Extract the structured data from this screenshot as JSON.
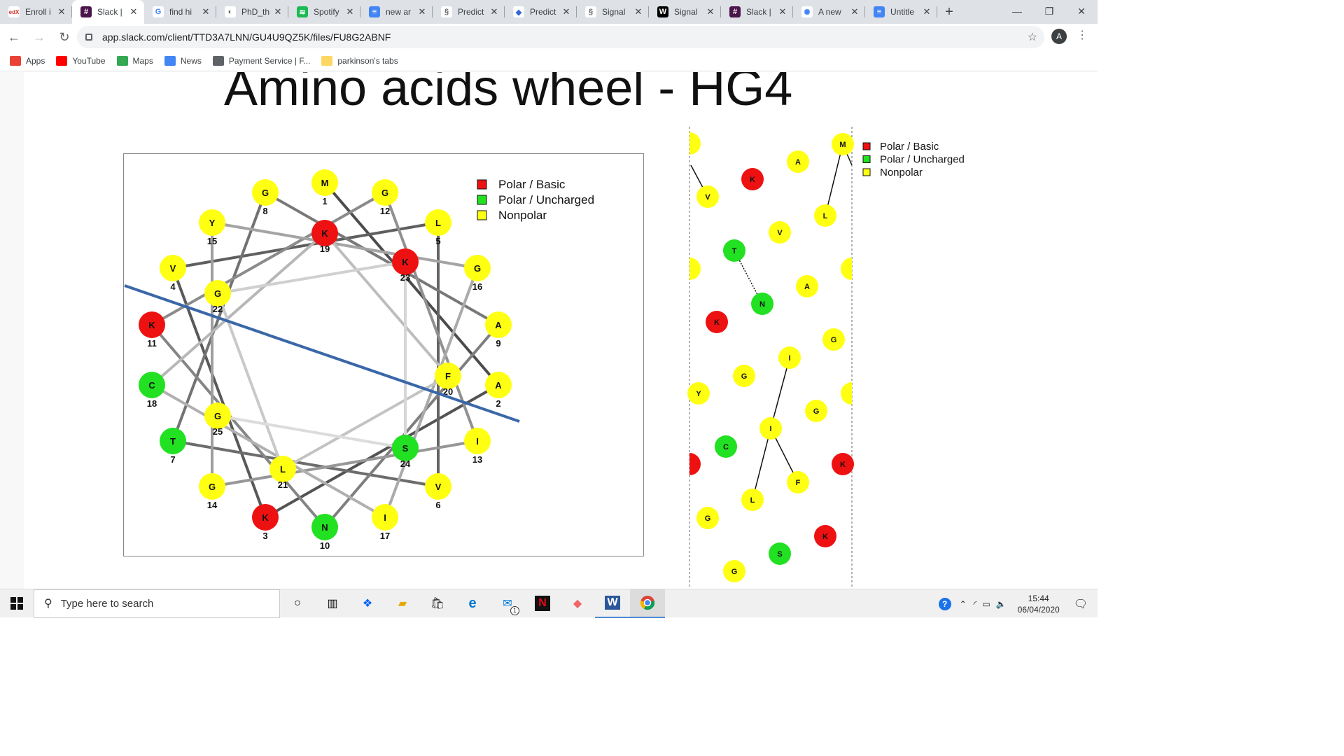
{
  "browser": {
    "tabs": [
      {
        "title": "Enroll i",
        "fav_text": "edX",
        "fav_color": "#ffffff",
        "fav_fg": "#d23228"
      },
      {
        "title": "Slack |",
        "fav_text": "#",
        "fav_color": "#4a154b",
        "fav_fg": "#ffffff",
        "active": true
      },
      {
        "title": "find hi",
        "fav_text": "G",
        "fav_color": "#ffffff",
        "fav_fg": "#4285f4"
      },
      {
        "title": "PhD_th",
        "fav_text": "◐",
        "fav_color": "#ffffff",
        "fav_fg": "#5f6368"
      },
      {
        "title": "Spotify",
        "fav_text": "≋",
        "fav_color": "#1db954",
        "fav_fg": "#ffffff"
      },
      {
        "title": "new ar",
        "fav_text": "≡",
        "fav_color": "#4285f4",
        "fav_fg": "#ffffff"
      },
      {
        "title": "Predict",
        "fav_text": "§",
        "fav_color": "#ffffff",
        "fav_fg": "#5f6368"
      },
      {
        "title": "Predict",
        "fav_text": "◆",
        "fav_color": "#ffffff",
        "fav_fg": "#3367d6"
      },
      {
        "title": "Signal",
        "fav_text": "§",
        "fav_color": "#ffffff",
        "fav_fg": "#5f6368"
      },
      {
        "title": "Signal",
        "fav_text": "W",
        "fav_color": "#000000",
        "fav_fg": "#ffffff"
      },
      {
        "title": "Slack |",
        "fav_text": "#",
        "fav_color": "#4a154b",
        "fav_fg": "#ffffff"
      },
      {
        "title": "A new",
        "fav_text": "✺",
        "fav_color": "#ffffff",
        "fav_fg": "#4285f4"
      },
      {
        "title": "Untitle",
        "fav_text": "≡",
        "fav_color": "#4285f4",
        "fav_fg": "#ffffff"
      }
    ],
    "url": "app.slack.com/client/TTD3A7LNN/GU4U9QZ5K/files/FU8G2ABNF",
    "avatar_letter": "A",
    "bookmarks": [
      {
        "label": "Apps",
        "color": "#ea4335"
      },
      {
        "label": "YouTube",
        "color": "#ff0000"
      },
      {
        "label": "Maps",
        "color": "#34a853"
      },
      {
        "label": "News",
        "color": "#4285f4"
      },
      {
        "label": "Payment Service | F...",
        "color": "#5f6368"
      },
      {
        "label": "parkinson's tabs",
        "color": "#fdd663"
      }
    ]
  },
  "slide": {
    "title": "Amino acids wheel - HG4"
  },
  "colors": {
    "polar_basic": "#ee1111",
    "polar_uncharged": "#22e022",
    "nonpolar": "#ffff11",
    "axis_line": "#3a67a8"
  },
  "wheel": {
    "legend": [
      {
        "label": "Polar / Basic",
        "type": "polar_basic"
      },
      {
        "label": "Polar / Uncharged",
        "type": "polar_uncharged"
      },
      {
        "label": "Nonpolar",
        "type": "nonpolar"
      }
    ],
    "residues": [
      {
        "n": 1,
        "aa": "M",
        "type": "nonpolar"
      },
      {
        "n": 2,
        "aa": "A",
        "type": "nonpolar"
      },
      {
        "n": 3,
        "aa": "K",
        "type": "polar_basic"
      },
      {
        "n": 4,
        "aa": "V",
        "type": "nonpolar"
      },
      {
        "n": 5,
        "aa": "L",
        "type": "nonpolar"
      },
      {
        "n": 6,
        "aa": "V",
        "type": "nonpolar"
      },
      {
        "n": 7,
        "aa": "T",
        "type": "polar_uncharged"
      },
      {
        "n": 8,
        "aa": "G",
        "type": "nonpolar"
      },
      {
        "n": 9,
        "aa": "A",
        "type": "nonpolar"
      },
      {
        "n": 10,
        "aa": "N",
        "type": "polar_uncharged"
      },
      {
        "n": 11,
        "aa": "K",
        "type": "polar_basic"
      },
      {
        "n": 12,
        "aa": "G",
        "type": "nonpolar"
      },
      {
        "n": 13,
        "aa": "I",
        "type": "nonpolar"
      },
      {
        "n": 14,
        "aa": "G",
        "type": "nonpolar"
      },
      {
        "n": 15,
        "aa": "Y",
        "type": "nonpolar"
      },
      {
        "n": 16,
        "aa": "G",
        "type": "nonpolar"
      },
      {
        "n": 17,
        "aa": "I",
        "type": "nonpolar"
      },
      {
        "n": 18,
        "aa": "C",
        "type": "polar_uncharged"
      },
      {
        "n": 19,
        "aa": "K",
        "type": "polar_basic"
      },
      {
        "n": 20,
        "aa": "F",
        "type": "nonpolar"
      },
      {
        "n": 21,
        "aa": "L",
        "type": "nonpolar"
      },
      {
        "n": 22,
        "aa": "G",
        "type": "nonpolar"
      },
      {
        "n": 23,
        "aa": "K",
        "type": "polar_basic"
      },
      {
        "n": 24,
        "aa": "S",
        "type": "polar_uncharged"
      },
      {
        "n": 25,
        "aa": "G",
        "type": "nonpolar"
      }
    ]
  },
  "network": {
    "legend": [
      {
        "label": "Polar / Basic",
        "type": "polar_basic"
      },
      {
        "label": "Polar / Uncharged",
        "type": "polar_uncharged"
      },
      {
        "label": "Nonpolar",
        "type": "nonpolar"
      }
    ],
    "nodes": [
      {
        "aa": "M",
        "type": "nonpolar"
      },
      {
        "aa": "A",
        "type": "nonpolar"
      },
      {
        "aa": "K",
        "type": "polar_basic"
      },
      {
        "aa": "V",
        "type": "nonpolar"
      },
      {
        "aa": "L",
        "type": "nonpolar"
      },
      {
        "aa": "V",
        "type": "nonpolar"
      },
      {
        "aa": "T",
        "type": "polar_uncharged"
      },
      {
        "aa": "N",
        "type": "polar_uncharged"
      },
      {
        "aa": "A",
        "type": "nonpolar"
      },
      {
        "aa": "K",
        "type": "polar_basic"
      },
      {
        "aa": "G",
        "type": "nonpolar"
      },
      {
        "aa": "I",
        "type": "nonpolar"
      },
      {
        "aa": "G",
        "type": "nonpolar"
      },
      {
        "aa": "Y",
        "type": "nonpolar"
      },
      {
        "aa": "G",
        "type": "nonpolar"
      },
      {
        "aa": "I",
        "type": "nonpolar"
      },
      {
        "aa": "C",
        "type": "polar_uncharged"
      },
      {
        "aa": "F",
        "type": "nonpolar"
      },
      {
        "aa": "L",
        "type": "nonpolar"
      },
      {
        "aa": "K",
        "type": "polar_basic"
      },
      {
        "aa": "G",
        "type": "nonpolar"
      },
      {
        "aa": "K",
        "type": "polar_basic"
      },
      {
        "aa": "S",
        "type": "polar_uncharged"
      },
      {
        "aa": "G",
        "type": "nonpolar"
      }
    ]
  },
  "taskbar": {
    "search_placeholder": "Type here to search",
    "time": "15:44",
    "date": "06/04/2020",
    "mail_badge": "1"
  }
}
